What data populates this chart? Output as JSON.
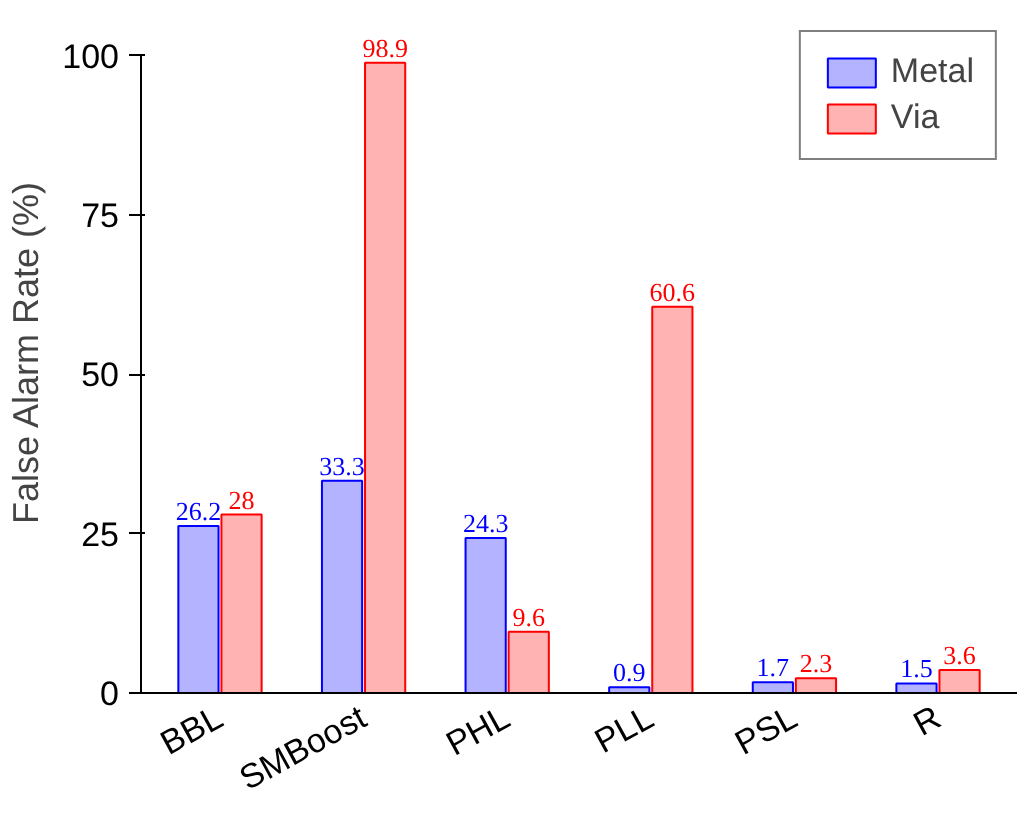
{
  "chart_data": {
    "type": "bar",
    "ylabel": "False Alarm Rate (%)",
    "categories": [
      "BBL",
      "SMBoost",
      "PHL",
      "PLL",
      "PSL",
      "R"
    ],
    "series": [
      {
        "name": "Metal",
        "color": "#b3b3ff",
        "values": [
          26.2,
          33.3,
          24.3,
          0.9,
          1.7,
          1.5
        ]
      },
      {
        "name": "Via",
        "color": "#ffb3b3",
        "values": [
          28,
          98.9,
          9.6,
          60.6,
          2.3,
          3.6
        ]
      }
    ],
    "ylim": [
      0,
      100
    ],
    "yticks": [
      0,
      25,
      50,
      75,
      100
    ],
    "grid": false,
    "legend": "top right",
    "data_labels": true
  }
}
